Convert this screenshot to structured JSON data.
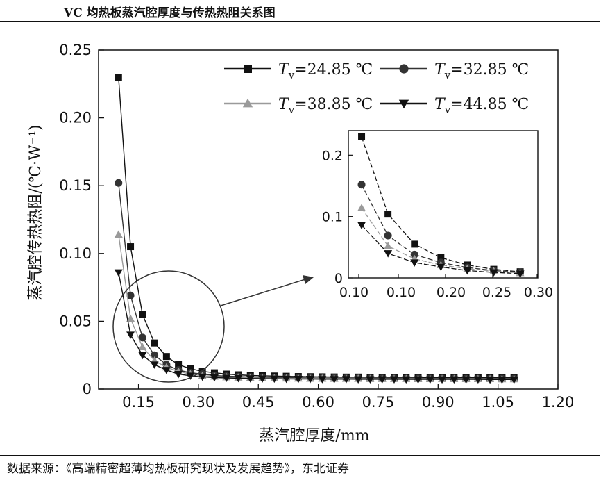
{
  "header": {
    "title": "VC 均热板蒸汽腔厚度与传热热阻关系图"
  },
  "footer": {
    "source": "数据来源：《高端精密超薄均热板研究现状及发展趋势》，东北证券"
  },
  "chart_data": {
    "type": "line",
    "xlabel": "蒸汽腔厚度/mm",
    "ylabel": "蒸汽腔传热热阻/(℃·W⁻¹)",
    "xlim": [
      0.05,
      1.2
    ],
    "ylim": [
      0,
      0.25
    ],
    "x_ticks": [
      "0.15",
      "0.30",
      "0.45",
      "0.60",
      "0.75",
      "0.90",
      "1.05",
      "1.20"
    ],
    "y_ticks": [
      "0",
      "0.05",
      "0.10",
      "0.15",
      "0.20",
      "0.25"
    ],
    "legend_position": "top-right",
    "legend": [
      {
        "var": "T",
        "sub": "v",
        "value": "=24.85 ℃"
      },
      {
        "var": "T",
        "sub": "v",
        "value": "=32.85 ℃"
      },
      {
        "var": "T",
        "sub": "v",
        "value": "=38.85 ℃"
      },
      {
        "var": "T",
        "sub": "v",
        "value": "=44.85 ℃"
      }
    ],
    "x": [
      0.1,
      0.13,
      0.16,
      0.19,
      0.22,
      0.25,
      0.28,
      0.31,
      0.34,
      0.37,
      0.4,
      0.43,
      0.46,
      0.49,
      0.52,
      0.55,
      0.58,
      0.61,
      0.64,
      0.67,
      0.7,
      0.73,
      0.76,
      0.79,
      0.82,
      0.85,
      0.88,
      0.91,
      0.94,
      0.97,
      1.0,
      1.03,
      1.06,
      1.09
    ],
    "series": [
      {
        "name": "Tv=24.85 ℃",
        "marker": "square",
        "color": "#111111",
        "values": [
          0.23,
          0.105,
          0.055,
          0.034,
          0.024,
          0.018,
          0.015,
          0.013,
          0.012,
          0.011,
          0.0105,
          0.01,
          0.0098,
          0.0096,
          0.0094,
          0.0092,
          0.0091,
          0.009,
          0.0089,
          0.0088,
          0.0088,
          0.0087,
          0.0087,
          0.0086,
          0.0086,
          0.0086,
          0.0085,
          0.0085,
          0.0085,
          0.0085,
          0.0084,
          0.0084,
          0.0084,
          0.0084
        ]
      },
      {
        "name": "Tv=32.85 ℃",
        "marker": "circle",
        "color": "#333333",
        "values": [
          0.152,
          0.069,
          0.038,
          0.025,
          0.018,
          0.014,
          0.012,
          0.011,
          0.01,
          0.0095,
          0.0092,
          0.0089,
          0.0087,
          0.0085,
          0.0084,
          0.0083,
          0.0082,
          0.0081,
          0.0081,
          0.008,
          0.008,
          0.0079,
          0.0079,
          0.0079,
          0.0078,
          0.0078,
          0.0078,
          0.0078,
          0.0078,
          0.0077,
          0.0077,
          0.0077,
          0.0077,
          0.0077
        ]
      },
      {
        "name": "Tv=38.85 ℃",
        "marker": "triangle-up",
        "color": "#9a9a9a",
        "values": [
          0.114,
          0.052,
          0.031,
          0.021,
          0.016,
          0.013,
          0.011,
          0.0098,
          0.0092,
          0.0088,
          0.0085,
          0.0083,
          0.0081,
          0.008,
          0.0079,
          0.0078,
          0.0077,
          0.0077,
          0.0076,
          0.0076,
          0.0076,
          0.0075,
          0.0075,
          0.0075,
          0.0075,
          0.0074,
          0.0074,
          0.0074,
          0.0074,
          0.0074,
          0.0074,
          0.0074,
          0.0073,
          0.0073
        ]
      },
      {
        "name": "Tv=44.85 ℃",
        "marker": "triangle-down",
        "color": "#111111",
        "values": [
          0.086,
          0.04,
          0.025,
          0.018,
          0.014,
          0.011,
          0.0098,
          0.009,
          0.0085,
          0.0082,
          0.008,
          0.0078,
          0.0077,
          0.0076,
          0.0075,
          0.0074,
          0.0074,
          0.0073,
          0.0073,
          0.0073,
          0.0072,
          0.0072,
          0.0072,
          0.0072,
          0.0071,
          0.0071,
          0.0071,
          0.0071,
          0.0071,
          0.0071,
          0.0071,
          0.007,
          0.007,
          0.007
        ]
      }
    ],
    "inset": {
      "xlim": [
        0.085,
        0.3
      ],
      "ylim": [
        0,
        0.24
      ],
      "x_ticks": [
        "0.10",
        "0.10",
        "0.15",
        "0.20",
        "0.25",
        "0.30"
      ],
      "y_ticks": [
        "0",
        "0.1",
        "0.2"
      ],
      "x": [
        0.1,
        0.13,
        0.16,
        0.19,
        0.22,
        0.25,
        0.28
      ],
      "series": [
        {
          "values": [
            0.23,
            0.104,
            0.055,
            0.033,
            0.021,
            0.014,
            0.01
          ]
        },
        {
          "values": [
            0.152,
            0.069,
            0.038,
            0.025,
            0.017,
            0.012,
            0.009
          ]
        },
        {
          "values": [
            0.114,
            0.052,
            0.031,
            0.021,
            0.015,
            0.011,
            0.008
          ]
        },
        {
          "values": [
            0.086,
            0.04,
            0.025,
            0.018,
            0.012,
            0.009,
            0.007
          ]
        }
      ]
    }
  }
}
